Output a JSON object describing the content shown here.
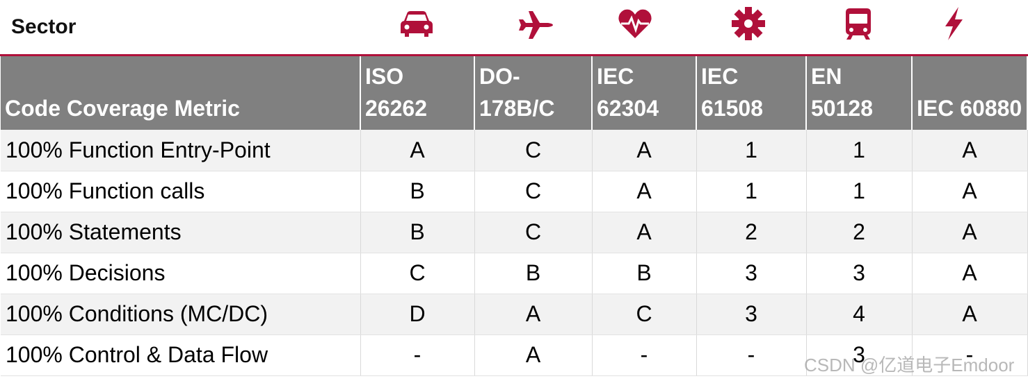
{
  "sector": {
    "label": "Sector"
  },
  "icons": [
    {
      "name": "car-icon",
      "color": "#b0103a"
    },
    {
      "name": "airplane-icon",
      "color": "#b0103a"
    },
    {
      "name": "heartbeat-icon",
      "color": "#b0103a"
    },
    {
      "name": "gear-icon",
      "color": "#b0103a"
    },
    {
      "name": "train-icon",
      "color": "#b0103a"
    },
    {
      "name": "lightning-icon",
      "color": "#b0103a"
    }
  ],
  "table": {
    "headers": [
      "Code Coverage Metric",
      "ISO 26262",
      "DO-178B/C",
      "IEC 62304",
      "IEC 61508",
      "EN 50128",
      "IEC 60880"
    ],
    "rows": [
      [
        "100% Function Entry-Point",
        "A",
        "C",
        "A",
        "1",
        "1",
        "A"
      ],
      [
        "100% Function calls",
        "B",
        "C",
        "A",
        "1",
        "1",
        "A"
      ],
      [
        "100% Statements",
        "B",
        "C",
        "A",
        "2",
        "2",
        "A"
      ],
      [
        "100% Decisions",
        "C",
        "B",
        "B",
        "3",
        "3",
        "A"
      ],
      [
        "100% Conditions (MC/DC)",
        "D",
        "A",
        "C",
        "3",
        "4",
        "A"
      ],
      [
        "100% Control  & Data Flow",
        "-",
        "A",
        "-",
        "-",
        "3",
        "-"
      ]
    ]
  },
  "watermark": "CSDN @亿道电子Emdoor"
}
